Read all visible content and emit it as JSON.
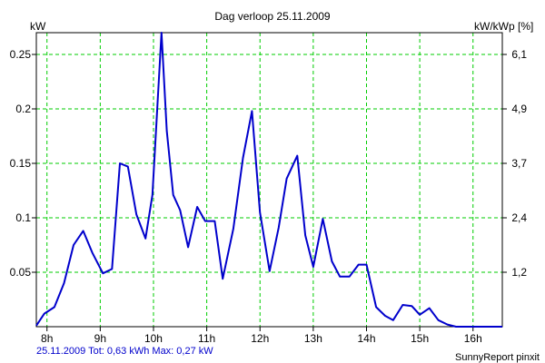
{
  "chart_data": {
    "type": "line",
    "title": "Dag  verloop 25.11.2009",
    "ylabel_left": "kW",
    "ylabel_right": "kW/kWp [%]",
    "x_ticks": [
      "8h",
      "9h",
      "10h",
      "11h",
      "12h",
      "13h",
      "14h",
      "15h",
      "16h"
    ],
    "x_tick_values": [
      8,
      9,
      10,
      11,
      12,
      13,
      14,
      15,
      16
    ],
    "xlim": [
      7.8,
      16.55
    ],
    "ylim": [
      0,
      0.27
    ],
    "y_ticks_left": [
      "0.05",
      "0.1",
      "0.15",
      "0.2",
      "0.25"
    ],
    "y_tick_values_left": [
      0.05,
      0.1,
      0.15,
      0.2,
      0.25
    ],
    "y_ticks_right": [
      "1,2",
      "2,4",
      "3,7",
      "4,9",
      "6,1"
    ],
    "y_tick_values_right": [
      0.05,
      0.1,
      0.15,
      0.2,
      0.25
    ],
    "grid": true,
    "series": [
      {
        "x": [
          7.8,
          7.95,
          8.14,
          8.32,
          8.5,
          8.68,
          8.85,
          9.05,
          9.22,
          9.37,
          9.52,
          9.68,
          9.85,
          9.98,
          10.15,
          10.25,
          10.37,
          10.5,
          10.65,
          10.82,
          10.97,
          11.15,
          11.3,
          11.5,
          11.68,
          11.85,
          12.0,
          12.18,
          12.35,
          12.5,
          12.7,
          12.85,
          13.0,
          13.18,
          13.35,
          13.5,
          13.68,
          13.85,
          14.0,
          14.18,
          14.35,
          14.5,
          14.68,
          14.85,
          15.0,
          15.18,
          15.35,
          15.52,
          15.68,
          16.0,
          16.55
        ],
        "y": [
          0.001,
          0.012,
          0.018,
          0.04,
          0.075,
          0.088,
          0.068,
          0.049,
          0.053,
          0.15,
          0.147,
          0.103,
          0.081,
          0.121,
          0.27,
          0.18,
          0.121,
          0.107,
          0.073,
          0.11,
          0.097,
          0.097,
          0.044,
          0.09,
          0.155,
          0.198,
          0.105,
          0.051,
          0.091,
          0.136,
          0.157,
          0.084,
          0.055,
          0.099,
          0.06,
          0.046,
          0.046,
          0.057,
          0.057,
          0.018,
          0.01,
          0.006,
          0.02,
          0.019,
          0.011,
          0.017,
          0.006,
          0.002,
          0.0,
          0.0,
          0.0
        ]
      }
    ],
    "line_color": "#0000cc",
    "grid_color": "#00cc00",
    "footer_left": "25.11.2009 Tot: 0,63 kWh Max: 0,27 kW",
    "footer_right": "SunnyReport pinxit"
  }
}
